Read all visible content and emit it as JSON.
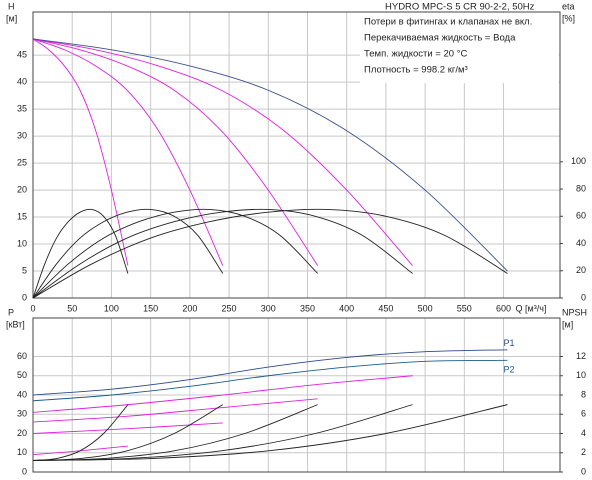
{
  "chart_data": [
    {
      "type": "line",
      "title": "HYDRO MPC-S 5 CR 90-2-2, 50Hz",
      "annotations": [
        "Потери в фитингах и клапанах не вкл.",
        "Перекачиваемая жидкость = Вода",
        "Темп. жидкости = 20 °C",
        "Плотность = 998.2 кг/м³"
      ],
      "ylabel": "H",
      "ylabel_unit": "[м]",
      "y2label": "eta",
      "y2label_unit": "[%]",
      "xlabel": "Q [м³/ч]",
      "xlim": [
        0,
        672
      ],
      "xticks": [
        0,
        50,
        100,
        150,
        200,
        250,
        300,
        350,
        400,
        450,
        500,
        550,
        600
      ],
      "ylim": [
        0,
        53
      ],
      "yticks": [
        0,
        5,
        10,
        15,
        20,
        25,
        30,
        35,
        40,
        45
      ],
      "y2lim": [
        0,
        210
      ],
      "y2ticks": [
        0,
        20,
        40,
        60,
        80,
        100
      ],
      "grid": true,
      "series": [
        {
          "color": "#e020e0",
          "x": [
            0,
            20,
            40,
            60,
            80,
            100,
            121
          ],
          "values": [
            48,
            46,
            43,
            38.5,
            31,
            20,
            6
          ]
        },
        {
          "color": "#e020e0",
          "x": [
            0,
            40,
            80,
            120,
            160,
            200,
            242
          ],
          "values": [
            48,
            46,
            43,
            38.5,
            31,
            20,
            6
          ]
        },
        {
          "color": "#e020e0",
          "x": [
            0,
            60,
            120,
            180,
            240,
            300,
            363
          ],
          "values": [
            48,
            46,
            43,
            38.5,
            31,
            20,
            6
          ]
        },
        {
          "color": "#e020e0",
          "x": [
            0,
            80,
            160,
            240,
            320,
            400,
            484
          ],
          "values": [
            48,
            46,
            43,
            38.5,
            31,
            20,
            6
          ]
        },
        {
          "color": "#3b4f8c",
          "x": [
            0,
            100,
            200,
            300,
            400,
            500,
            605
          ],
          "values": [
            48,
            46,
            43,
            38.5,
            31,
            20,
            5
          ]
        },
        {
          "color": "#222222",
          "axis": "y2",
          "x": [
            0,
            15,
            30,
            45,
            60,
            75,
            90,
            105,
            121
          ],
          "values": [
            0,
            25,
            44,
            56,
            63,
            65,
            60,
            46,
            18
          ]
        },
        {
          "color": "#222222",
          "axis": "y2",
          "x": [
            0,
            30,
            60,
            90,
            120,
            150,
            180,
            210,
            242
          ],
          "values": [
            0,
            25,
            44,
            56,
            63,
            65,
            60,
            46,
            18
          ]
        },
        {
          "color": "#222222",
          "axis": "y2",
          "x": [
            0,
            45,
            90,
            135,
            180,
            225,
            270,
            315,
            363
          ],
          "values": [
            0,
            25,
            44,
            56,
            63,
            65,
            60,
            46,
            18
          ]
        },
        {
          "color": "#222222",
          "axis": "y2",
          "x": [
            0,
            60,
            120,
            180,
            240,
            300,
            360,
            420,
            484
          ],
          "values": [
            0,
            25,
            44,
            56,
            63,
            65,
            60,
            46,
            18
          ]
        },
        {
          "color": "#222222",
          "axis": "y2",
          "x": [
            0,
            75,
            150,
            225,
            300,
            375,
            450,
            525,
            605
          ],
          "values": [
            0,
            25,
            44,
            56,
            63,
            65,
            60,
            46,
            18
          ]
        }
      ]
    },
    {
      "type": "line",
      "ylabel": "P",
      "ylabel_unit": "[кВт]",
      "y2label": "NPSH",
      "y2label_unit": "[м]",
      "xlim": [
        0,
        672
      ],
      "xticks": [
        0,
        50,
        100,
        150,
        200,
        250,
        300,
        350,
        400,
        450,
        500,
        550,
        600
      ],
      "ylim": [
        0,
        80
      ],
      "yticks": [
        0,
        10,
        20,
        30,
        40,
        50,
        60
      ],
      "y2lim": [
        0,
        16
      ],
      "y2ticks": [
        0,
        2,
        4,
        6,
        8,
        10,
        12
      ],
      "grid": true,
      "series": [
        {
          "name": "P1",
          "color": "#2a4a8a",
          "x": [
            0,
            100,
            200,
            300,
            400,
            500,
            605
          ],
          "values": [
            40,
            43,
            48,
            54.5,
            59.5,
            62.5,
            63.5
          ]
        },
        {
          "name": "P2",
          "color": "#1a5a8a",
          "x": [
            0,
            100,
            200,
            300,
            400,
            500,
            605
          ],
          "values": [
            37,
            40,
            44.5,
            50,
            54.5,
            57.5,
            58
          ]
        },
        {
          "color": "#e020e0",
          "x": [
            0,
            121,
            242,
            363,
            484
          ],
          "values": [
            31,
            35,
            40,
            45.5,
            50
          ]
        },
        {
          "color": "#e020e0",
          "x": [
            0,
            121,
            242,
            363
          ],
          "values": [
            26,
            29,
            33.5,
            38
          ]
        },
        {
          "color": "#e020e0",
          "x": [
            0,
            121,
            242
          ],
          "values": [
            20,
            22.5,
            25.5
          ]
        },
        {
          "color": "#e020e0",
          "x": [
            0,
            60,
            121
          ],
          "values": [
            9,
            11,
            13.5
          ]
        },
        {
          "color": "#222222",
          "axis": "y2",
          "x": [
            0,
            30,
            60,
            90,
            121
          ],
          "values": [
            1.2,
            1.4,
            2.2,
            4,
            7
          ]
        },
        {
          "color": "#222222",
          "axis": "y2",
          "x": [
            0,
            60,
            120,
            180,
            242
          ],
          "values": [
            1.2,
            1.4,
            2.2,
            4,
            7
          ]
        },
        {
          "color": "#222222",
          "axis": "y2",
          "x": [
            0,
            90,
            180,
            270,
            363
          ],
          "values": [
            1.2,
            1.4,
            2.2,
            4,
            7
          ]
        },
        {
          "color": "#222222",
          "axis": "y2",
          "x": [
            0,
            120,
            240,
            360,
            484
          ],
          "values": [
            1.2,
            1.4,
            2.2,
            4,
            7
          ]
        },
        {
          "color": "#222222",
          "axis": "y2",
          "x": [
            0,
            150,
            300,
            450,
            605
          ],
          "values": [
            1.2,
            1.4,
            2.2,
            4,
            7
          ]
        }
      ]
    }
  ]
}
